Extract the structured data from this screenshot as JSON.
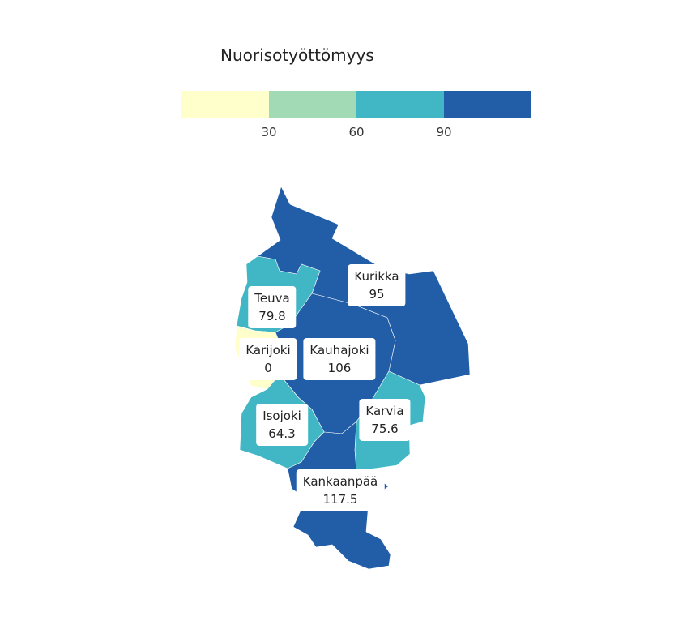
{
  "title": "Nuorisotyöttömyys",
  "legend": {
    "colors": [
      "#ffffcc",
      "#a1dab4",
      "#41b6c4",
      "#225ea8"
    ],
    "ticks": [
      "30",
      "60",
      "90"
    ]
  },
  "regions": [
    {
      "name": "Kurikka",
      "value": "95",
      "color": "#225ea8"
    },
    {
      "name": "Teuva",
      "value": "79.8",
      "color": "#41b6c4"
    },
    {
      "name": "Karijoki",
      "value": "0",
      "color": "#ffffcc"
    },
    {
      "name": "Kauhajoki",
      "value": "106",
      "color": "#225ea8"
    },
    {
      "name": "Isojoki",
      "value": "64.3",
      "color": "#41b6c4"
    },
    {
      "name": "Karvia",
      "value": "75.6",
      "color": "#41b6c4"
    },
    {
      "name": "Kankaanpää",
      "value": "117.5",
      "color": "#225ea8"
    }
  ]
}
